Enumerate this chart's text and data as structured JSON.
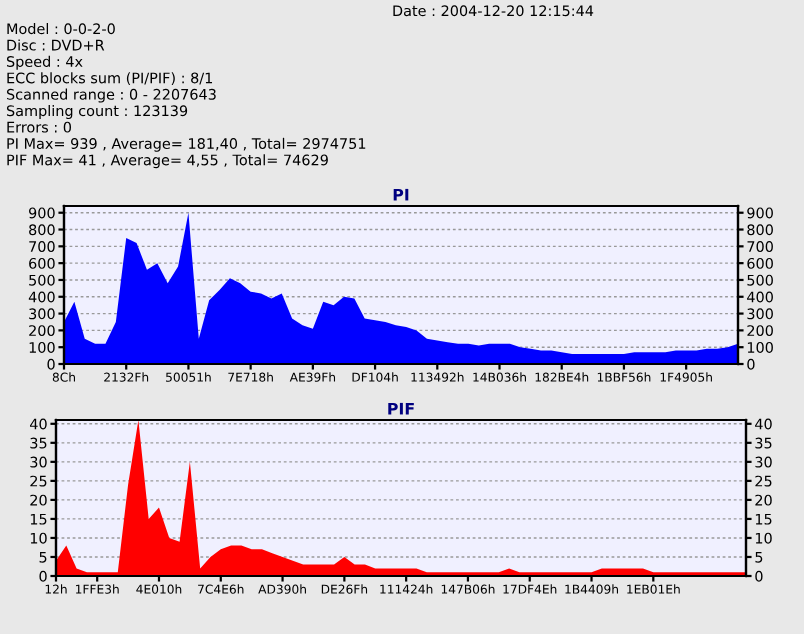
{
  "chart_data": [
    {
      "type": "area",
      "title": "PI",
      "annotations": [
        "Date : 2004-12-20 12:15:44",
        "Model : 0-0-2-0",
        "Disc : DVD+R",
        "Speed : 4x",
        "ECC blocks sum (PI/PIF) : 8/1",
        "Scanned range : 0 - 2207643",
        "Sampling count : 123139",
        "Errors : 0",
        "PI Max= 939 , Average= 181,40 , Total= 2974751",
        "PIF Max= 41 , Average= 4,55 , Total= 74629"
      ],
      "categories": [
        "8Ch",
        null,
        null,
        null,
        null,
        null,
        "2132Fh",
        null,
        null,
        null,
        null,
        null,
        "50051h",
        null,
        null,
        null,
        null,
        null,
        "7E718h",
        null,
        null,
        null,
        null,
        null,
        "AE39Fh",
        null,
        null,
        null,
        null,
        null,
        "DF104h",
        null,
        null,
        null,
        null,
        null,
        "113492h",
        null,
        null,
        null,
        null,
        null,
        "14B036h",
        null,
        null,
        null,
        null,
        null,
        "182BE4h",
        null,
        null,
        null,
        null,
        null,
        "1BBF56h",
        null,
        null,
        null,
        null,
        null,
        "1F4905h",
        null,
        null,
        null,
        null,
        null
      ],
      "series": [
        {
          "color": "#0000ff",
          "values": [
            250,
            370,
            150,
            120,
            120,
            250,
            750,
            720,
            560,
            600,
            480,
            580,
            900,
            150,
            380,
            440,
            510,
            480,
            430,
            420,
            390,
            420,
            270,
            230,
            210,
            370,
            350,
            400,
            390,
            270,
            260,
            250,
            230,
            220,
            200,
            150,
            140,
            130,
            120,
            120,
            110,
            120,
            120,
            120,
            100,
            90,
            80,
            80,
            70,
            60,
            60,
            60,
            60,
            60,
            60,
            70,
            70,
            70,
            70,
            80,
            80,
            80,
            90,
            90,
            100,
            120
          ]
        }
      ],
      "ylim": [
        0,
        940
      ],
      "yticks": [
        0,
        100,
        200,
        300,
        400,
        500,
        600,
        700,
        800,
        900
      ],
      "y2lim": [
        0,
        940
      ],
      "y2ticks": [
        0,
        100,
        200,
        300,
        400,
        500,
        600,
        700,
        800,
        900
      ],
      "grid": "y"
    },
    {
      "type": "area",
      "title": "PIF",
      "categories": [
        "12h",
        null,
        null,
        null,
        "1FFE3h",
        null,
        null,
        null,
        null,
        null,
        "4E010h",
        null,
        null,
        null,
        null,
        null,
        "7C4E6h",
        null,
        null,
        null,
        null,
        null,
        "AD390h",
        null,
        null,
        null,
        null,
        null,
        "DE26Fh",
        null,
        null,
        null,
        null,
        null,
        "111424h",
        null,
        null,
        null,
        null,
        null,
        "147B06h",
        null,
        null,
        null,
        null,
        null,
        "17DF4Eh",
        null,
        null,
        null,
        null,
        null,
        "1B4409h",
        null,
        null,
        null,
        null,
        null,
        "1EB01Eh",
        null,
        null,
        null,
        null,
        null,
        null,
        null,
        null,
        null
      ],
      "series": [
        {
          "color": "#ff0000",
          "values": [
            4,
            8,
            2,
            1,
            1,
            1,
            1,
            24,
            41,
            15,
            18,
            10,
            9,
            30,
            2,
            5,
            7,
            8,
            8,
            7,
            7,
            6,
            5,
            4,
            3,
            3,
            3,
            3,
            5,
            3,
            3,
            2,
            2,
            2,
            2,
            2,
            1,
            1,
            1,
            1,
            1,
            1,
            1,
            1,
            2,
            1,
            1,
            1,
            1,
            1,
            1,
            1,
            1,
            2,
            2,
            2,
            2,
            2,
            1,
            1,
            1,
            1,
            1,
            1,
            1,
            1,
            1,
            1
          ]
        }
      ],
      "ylim": [
        0,
        41
      ],
      "yticks": [
        0,
        5,
        10,
        15,
        20,
        25,
        30,
        35,
        40
      ],
      "y2lim": [
        0,
        41
      ],
      "y2ticks": [
        0,
        5,
        10,
        15,
        20,
        25,
        30,
        35,
        40
      ],
      "grid": "y"
    }
  ]
}
